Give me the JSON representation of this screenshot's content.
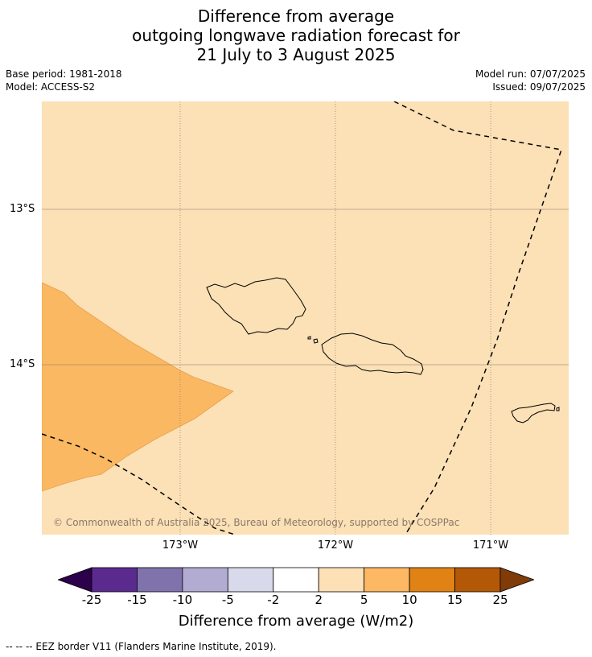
{
  "title": {
    "line1": "Difference from average",
    "line2": "outgoing longwave radiation forecast for",
    "line3": "21 July to 3 August 2025"
  },
  "meta": {
    "base_period": "Base period: 1981-2018",
    "model": "Model: ACCESS-S2",
    "model_run": "Model run: 07/07/2025",
    "issued": "Issued: 09/07/2025"
  },
  "map": {
    "copyright": "© Commonwealth of Australia 2025, Bureau of Meteorology, supported by COSPPac",
    "lat_labels": [
      "13°S",
      "14°S"
    ],
    "lon_labels": [
      "173°W",
      "172°W",
      "171°W"
    ],
    "islands": [
      "Savai'i",
      "Upolu",
      "Tutuila"
    ],
    "colors": {
      "background_fill": "#fce0b6",
      "anomaly_fill": "#fbb862",
      "coastline": "#000000",
      "gridline": "#8a7a6a"
    }
  },
  "colorbar": {
    "ticks": [
      "-25",
      "-15",
      "-10",
      "-5",
      "-2",
      "2",
      "5",
      "10",
      "15",
      "25"
    ],
    "colors": [
      "#2d004b",
      "#5b2a8f",
      "#8073ac",
      "#b2abd2",
      "#d8daeb",
      "#ffffff",
      "#fee0b6",
      "#fdb863",
      "#e08214",
      "#b35806",
      "#7f3b08"
    ],
    "label": "Difference from average (W/m2)"
  },
  "footnote": "--  --  -- EEZ border V11 (Flanders Marine Institute, 2019)."
}
